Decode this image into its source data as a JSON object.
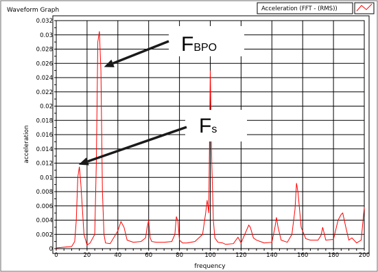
{
  "chart_data": {
    "type": "line",
    "title": "Waveform Graph",
    "xlabel": "frequency",
    "ylabel": "acceleration",
    "xlim": [
      0,
      200
    ],
    "ylim": [
      0,
      0.032
    ],
    "x_ticks": [
      0,
      20,
      40,
      60,
      80,
      100,
      120,
      140,
      160,
      180,
      200
    ],
    "y_ticks": [
      0,
      0.002,
      0.004,
      0.006,
      0.008,
      0.01,
      0.012,
      0.014,
      0.016,
      0.018,
      0.02,
      0.022,
      0.024,
      0.026,
      0.028,
      0.03,
      0.032
    ],
    "y_tick_labels": [
      "0",
      "0.002",
      "0.004",
      "0.006",
      "0.008",
      "0.01",
      "0.012",
      "0.014",
      "0.016",
      "0.018",
      "0.02",
      "0.022",
      "0.024",
      "0.026",
      "0.028",
      "0.03",
      "0.032"
    ],
    "grid": true,
    "legend_position": "top-right",
    "series": [
      {
        "name": "Acceleration (FFT - (RMS))",
        "color": "#ff0000",
        "x": [
          0,
          5,
          10,
          12,
          13,
          14,
          15,
          16,
          18,
          20,
          22,
          25,
          26,
          27,
          28,
          29,
          30,
          31,
          32,
          35,
          40,
          42,
          44,
          46,
          50,
          55,
          58,
          59,
          60,
          61,
          62,
          65,
          70,
          75,
          77,
          78,
          79,
          80,
          82,
          85,
          90,
          95,
          97,
          98,
          99,
          100,
          101,
          102,
          103,
          105,
          108,
          110,
          115,
          118,
          119,
          120,
          122,
          125,
          126,
          128,
          130,
          135,
          140,
          142,
          143,
          144,
          146,
          150,
          153,
          155,
          156,
          157,
          159,
          162,
          165,
          170,
          172,
          173,
          175,
          180,
          183,
          185,
          186,
          188,
          190,
          192,
          195,
          198,
          200
        ],
        "y": [
          0.0001,
          0.0002,
          0.0003,
          0.001,
          0.004,
          0.01,
          0.0115,
          0.009,
          0.002,
          0.0005,
          0.0008,
          0.002,
          0.012,
          0.029,
          0.0305,
          0.025,
          0.008,
          0.002,
          0.0008,
          0.0007,
          0.0025,
          0.0038,
          0.003,
          0.0012,
          0.0009,
          0.001,
          0.0015,
          0.003,
          0.004,
          0.0015,
          0.001,
          0.0009,
          0.0009,
          0.001,
          0.002,
          0.0045,
          0.0038,
          0.0012,
          0.0008,
          0.0008,
          0.001,
          0.002,
          0.005,
          0.0068,
          0.005,
          0.025,
          0.012,
          0.004,
          0.0015,
          0.0009,
          0.0008,
          0.0006,
          0.0007,
          0.0016,
          0.0012,
          0.0008,
          0.0018,
          0.0033,
          0.003,
          0.0015,
          0.0012,
          0.0008,
          0.0009,
          0.003,
          0.0044,
          0.003,
          0.0012,
          0.0009,
          0.002,
          0.0055,
          0.0092,
          0.0078,
          0.003,
          0.0014,
          0.0012,
          0.0012,
          0.0019,
          0.003,
          0.0012,
          0.0013,
          0.004,
          0.0048,
          0.005,
          0.003,
          0.0012,
          0.0015,
          0.0008,
          0.0012,
          0.0058
        ]
      }
    ],
    "annotations": [
      {
        "label_main": "F",
        "label_sub": "BPO",
        "x": 31,
        "y": 0.0255
      },
      {
        "label_main": "F",
        "label_sub": "s",
        "x": 14.5,
        "y": 0.0118
      }
    ]
  }
}
